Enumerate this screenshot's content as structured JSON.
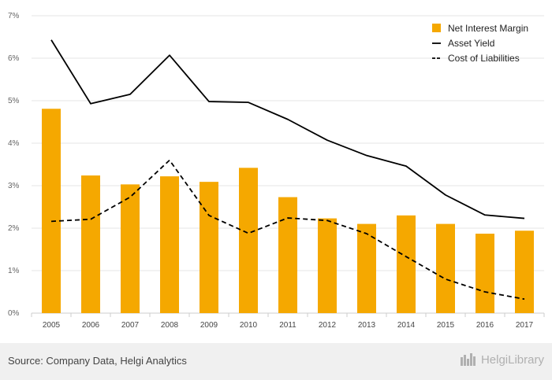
{
  "chart_data": {
    "type": "bar+line",
    "categories": [
      "2005",
      "2006",
      "2007",
      "2008",
      "2009",
      "2010",
      "2011",
      "2012",
      "2013",
      "2014",
      "2015",
      "2016",
      "2017"
    ],
    "ylim": [
      0,
      7
    ],
    "y_ticks": [
      "0%",
      "1%",
      "2%",
      "3%",
      "4%",
      "5%",
      "6%",
      "7%"
    ],
    "grid": true,
    "legend_placement": "top-right",
    "series": [
      {
        "name": "Net Interest Margin",
        "kind": "bar",
        "color": "#f5a800",
        "values": [
          4.81,
          3.24,
          3.03,
          3.22,
          3.09,
          3.42,
          2.73,
          2.23,
          2.1,
          2.3,
          2.1,
          1.87,
          1.94
        ]
      },
      {
        "name": "Asset Yield",
        "kind": "line",
        "style": "solid",
        "color": "#000000",
        "values": [
          6.43,
          4.93,
          5.15,
          6.07,
          4.98,
          4.96,
          4.56,
          4.07,
          3.71,
          3.46,
          2.78,
          2.31,
          2.23
        ]
      },
      {
        "name": "Cost of Liabilities",
        "kind": "line",
        "style": "dashed",
        "color": "#000000",
        "values": [
          2.16,
          2.21,
          2.73,
          3.6,
          2.3,
          1.88,
          2.24,
          2.18,
          1.87,
          1.33,
          0.8,
          0.5,
          0.33
        ]
      }
    ]
  },
  "footer": {
    "source": "Source: Company Data, Helgi Analytics",
    "logo_text": "HelgiLibrary"
  }
}
